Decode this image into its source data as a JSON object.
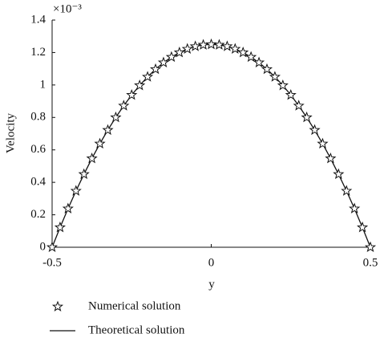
{
  "chart_data": {
    "type": "line",
    "x_label": "y",
    "y_label": "Velocity",
    "y_multiplier": "×10⁻³",
    "x": [
      -0.5,
      -0.475,
      -0.45,
      -0.425,
      -0.4,
      -0.375,
      -0.35,
      -0.325,
      -0.3,
      -0.275,
      -0.25,
      -0.225,
      -0.2,
      -0.175,
      -0.15,
      -0.125,
      -0.1,
      -0.075,
      -0.05,
      -0.025,
      0,
      0.025,
      0.05,
      0.075,
      0.1,
      0.125,
      0.15,
      0.175,
      0.2,
      0.225,
      0.25,
      0.275,
      0.3,
      0.325,
      0.35,
      0.375,
      0.4,
      0.425,
      0.45,
      0.475,
      0.5
    ],
    "series": [
      {
        "name": "Numerical solution",
        "marker": "star",
        "color": "#111111",
        "values": [
          0,
          0.122,
          0.238,
          0.347,
          0.45,
          0.547,
          0.638,
          0.722,
          0.8,
          0.872,
          0.938,
          0.997,
          1.05,
          1.097,
          1.138,
          1.172,
          1.2,
          1.222,
          1.238,
          1.247,
          1.25,
          1.247,
          1.238,
          1.222,
          1.2,
          1.172,
          1.138,
          1.097,
          1.05,
          0.997,
          0.938,
          0.872,
          0.8,
          0.722,
          0.638,
          0.547,
          0.45,
          0.347,
          0.238,
          0.122,
          0
        ]
      },
      {
        "name": "Theoretical solution",
        "marker": "line",
        "color": "#111111",
        "values": [
          0,
          0.122,
          0.238,
          0.347,
          0.45,
          0.547,
          0.638,
          0.722,
          0.8,
          0.872,
          0.938,
          0.997,
          1.05,
          1.097,
          1.138,
          1.172,
          1.2,
          1.222,
          1.238,
          1.247,
          1.25,
          1.247,
          1.238,
          1.222,
          1.2,
          1.172,
          1.138,
          1.097,
          1.05,
          0.997,
          0.938,
          0.872,
          0.8,
          0.722,
          0.638,
          0.547,
          0.45,
          0.347,
          0.238,
          0.122,
          0
        ]
      }
    ],
    "xlim": [
      -0.5,
      0.5
    ],
    "xticks": [
      -0.5,
      0,
      0.5
    ],
    "ylim": [
      0,
      1.4
    ],
    "yticks": [
      0,
      0.2,
      0.4,
      0.6,
      0.8,
      1,
      1.2,
      1.4
    ],
    "grid": false
  }
}
